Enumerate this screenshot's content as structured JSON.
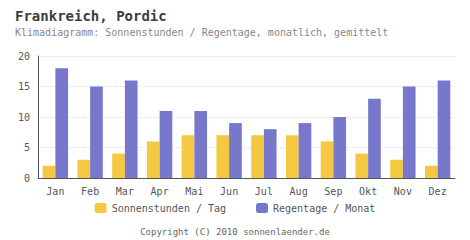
{
  "chart_data": {
    "type": "bar",
    "title": "Frankreich, Pordic",
    "subtitle": "Klimadiagramm: Sonnenstunden / Regentage, monatlich, gemittelt",
    "footer": "Copyright (C) 2010 sonnenlaender.de",
    "categories": [
      "Jan",
      "Feb",
      "Mar",
      "Apr",
      "Mai",
      "Jun",
      "Jul",
      "Aug",
      "Sep",
      "Okt",
      "Nov",
      "Dez"
    ],
    "series": [
      {
        "name": "Sonnenstunden / Tag",
        "color": "#F5C842",
        "values": [
          2,
          3,
          4,
          6,
          7,
          7,
          7,
          7,
          6,
          4,
          3,
          2
        ]
      },
      {
        "name": "Regentage / Monat",
        "color": "#7777CC",
        "values": [
          18,
          15,
          16,
          11,
          11,
          9,
          8,
          9,
          10,
          13,
          15,
          16
        ]
      }
    ],
    "ylim": [
      0,
      20
    ],
    "yticks": [
      0,
      5,
      10,
      15,
      20
    ],
    "grid": true,
    "legend": "bottom"
  }
}
